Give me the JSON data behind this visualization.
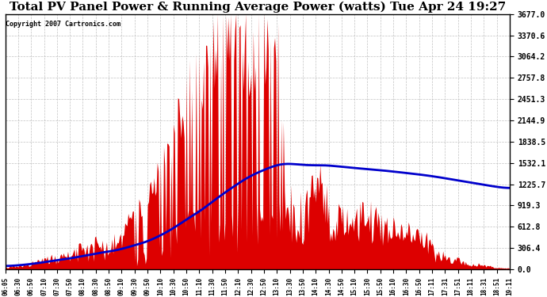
{
  "title": "Total PV Panel Power & Running Average Power (watts) Tue Apr 24 19:27",
  "copyright": "Copyright 2007 Cartronics.com",
  "yticks": [
    0.0,
    306.4,
    612.8,
    919.3,
    1225.7,
    1532.1,
    1838.5,
    2144.9,
    2451.3,
    2757.8,
    3064.2,
    3370.6,
    3677.0
  ],
  "ymax": 3677.0,
  "ymin": 0.0,
  "background_color": "#ffffff",
  "plot_bg_color": "#ffffff",
  "grid_color": "#bbbbbb",
  "bar_color": "#dd0000",
  "line_color": "#0000cc",
  "title_fontsize": 11,
  "xtick_labels": [
    "06:05",
    "06:30",
    "06:50",
    "07:10",
    "07:30",
    "07:50",
    "08:10",
    "08:30",
    "08:50",
    "09:10",
    "09:30",
    "09:50",
    "10:10",
    "10:30",
    "10:50",
    "11:10",
    "11:30",
    "11:50",
    "12:10",
    "12:30",
    "12:50",
    "13:10",
    "13:30",
    "13:50",
    "14:10",
    "14:30",
    "14:50",
    "15:10",
    "15:30",
    "15:50",
    "16:10",
    "16:30",
    "16:50",
    "17:11",
    "17:31",
    "17:51",
    "18:11",
    "18:31",
    "18:51",
    "19:11"
  ]
}
